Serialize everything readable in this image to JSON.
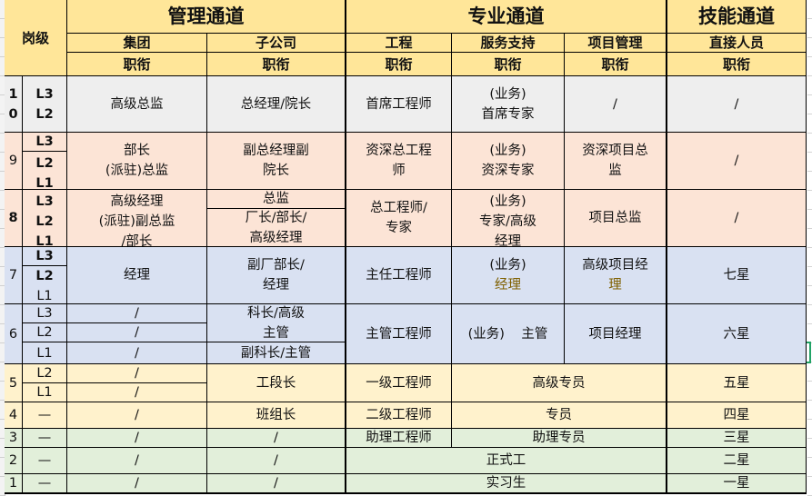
{
  "header": {
    "grade": "岗级",
    "channels": {
      "management": "管理通道",
      "professional": "专业通道",
      "skill": "技能通道"
    },
    "subcolumns": [
      "集团",
      "子公司",
      "工程",
      "服务支持",
      "项目管理",
      "直接人员"
    ],
    "title_label": "职衔"
  },
  "colors": {
    "header": "#ffe699",
    "level10": "#eeeeee",
    "level9_8": "#fce4d6",
    "level7_6": "#d9e1f2",
    "level5_4": "#fff2cc",
    "level3_1": "#e2efda"
  },
  "rows": {
    "l10": {
      "level": "10",
      "sub": "L3\nL2",
      "group": "高级总监",
      "subsidiary": "总经理/院长",
      "engineering": "首席工程师",
      "service": "(业务)\n首席专家",
      "project": "/",
      "direct": "/"
    },
    "l9": {
      "level": "9",
      "sub_a": "L3",
      "sub_b": "L2\nL1",
      "group": "部长\n(派驻)总监",
      "subsidiary": "副总经理副院长",
      "engineering": "资深总工程师",
      "service": "(业务)\n资深专家",
      "project": "资深项目总监",
      "direct": "/"
    },
    "l8": {
      "level": "8",
      "sub": "L3\nL2\nL1",
      "group": "高级经理\n(派驻)副总监\n/部长",
      "subsidiary_a": "总监",
      "subsidiary_b": "厂长/部长/高级经理",
      "engineering": "总工程师/专家",
      "service": "(业务)\n专家/高级\n经理",
      "project": "项目总监",
      "direct": "/"
    },
    "l7": {
      "level": "7",
      "sub_a": "L3",
      "sub_b1": "L2",
      "sub_b2": "L1",
      "group": "经理",
      "subsidiary": "副厂部长/经理",
      "engineering": "主任工程师",
      "service_a": "(业务)",
      "service_b": "经理",
      "project_a": "高级项目经",
      "project_b": "理",
      "direct": "七星"
    },
    "l6": {
      "level": "6",
      "sub_a": "L3",
      "sub_b": "L2",
      "sub_c": "L1",
      "group_a": "/",
      "group_b": "/",
      "group_c": "/",
      "subsidiary_a": "科长/高级主管",
      "subsidiary_b": "副科长/主管",
      "engineering": "主管工程师",
      "service": "(业务)    主管",
      "project": "项目经理",
      "direct": "六星"
    },
    "l5": {
      "level": "5",
      "sub_a": "L2",
      "sub_b": "L1",
      "group_a": "/",
      "group_b": "/",
      "subsidiary": "工段长",
      "engineering": "一级工程师",
      "service_project": "高级专员",
      "direct": "五星"
    },
    "l4": {
      "level": "4",
      "sub": "—",
      "group": "/",
      "subsidiary": "班组长",
      "engineering": "二级工程师",
      "service_project": "专员",
      "direct": "四星"
    },
    "l3": {
      "level": "3",
      "sub": "—",
      "group": "/",
      "subsidiary": "/",
      "engineering": "助理工程师",
      "service_project": "助理专员",
      "direct": "三星"
    },
    "l2": {
      "level": "2",
      "sub": "—",
      "group": "/",
      "subsidiary": "/",
      "professional": "正式工",
      "direct": "二星"
    },
    "l1": {
      "level": "1",
      "sub": "—",
      "group": "/",
      "subsidiary": "/",
      "professional": "实习生",
      "direct": "一星"
    }
  }
}
